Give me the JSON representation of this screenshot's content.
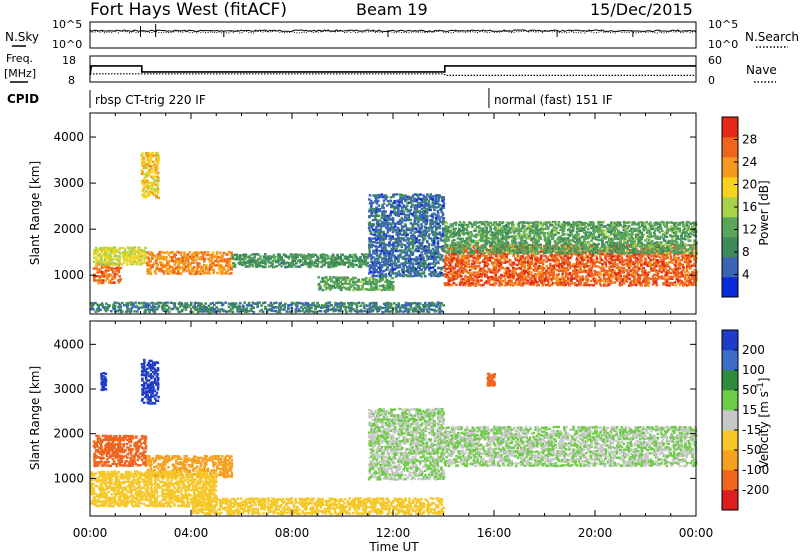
{
  "header": {
    "station": "Fort Hays West (fitACF)",
    "beam": "Beam 19",
    "date": "15/Dec/2015"
  },
  "strip_labels": {
    "nsky": "N.Sky",
    "nsearch": "N.Search",
    "freq_line1": "Freq.",
    "freq_line2": "[MHz]",
    "nave": "Nave",
    "cpid": "CPID"
  },
  "noise_axis": {
    "left_top": "10^5",
    "left_bottom": "10^0",
    "right_top": "10^5",
    "right_bottom": "10^0"
  },
  "freq_axis": {
    "left_top": "18",
    "left_bottom": "8",
    "right_top": "60",
    "right_bottom": "0"
  },
  "cpid_segments": [
    {
      "label": "rbsp CT-trig 220 IF",
      "start_hour": 0,
      "end_hour": 15.8
    },
    {
      "label": "normal (fast) 151 IF",
      "start_hour": 15.8,
      "end_hour": 24
    }
  ],
  "colors": {
    "power": [
      "#0a2adc",
      "#3a64b4",
      "#3d8a5a",
      "#5aa55a",
      "#a8d24a",
      "#f5d21e",
      "#f59a1e",
      "#f0641e",
      "#e62814"
    ],
    "velocity": [
      "#1e3cc8",
      "#3c6ec8",
      "#2e8c3c",
      "#6ecc46",
      "#c8c8c8",
      "#f5c828",
      "#f5a01e",
      "#f0641e",
      "#dc1e1e"
    ],
    "ground_scatter": "#c0c0c0"
  },
  "chart_data": [
    {
      "type": "line",
      "title": "N.Sky / N.Search",
      "x_range_hours": [
        0,
        24
      ],
      "y_scale": "log",
      "y_range": [
        "10^0",
        "10^5"
      ],
      "series": [
        {
          "name": "N.Sky",
          "x": [
            0,
            2,
            4,
            6,
            8,
            10,
            12,
            14,
            16,
            18,
            20,
            22,
            24
          ],
          "y": [
            3000,
            3200,
            2800,
            3000,
            2900,
            3100,
            3000,
            2900,
            3000,
            3100,
            2900,
            3000,
            3200
          ]
        },
        {
          "name": "N.Search",
          "x": [
            0,
            4,
            8,
            12,
            16,
            20,
            24
          ],
          "y": [
            1500,
            1400,
            1500,
            1600,
            1500,
            1500,
            1400
          ]
        }
      ]
    },
    {
      "type": "line",
      "title": "Freq. / Nave",
      "x_range_hours": [
        0,
        24
      ],
      "ylim_left": [
        8,
        18
      ],
      "ylim_right": [
        0,
        60
      ],
      "series": [
        {
          "name": "Freq. [MHz]",
          "x": [
            0,
            0.05,
            2.05,
            2.05,
            14.05,
            14.05,
            24
          ],
          "y": [
            10.5,
            14.3,
            14.3,
            11.8,
            11.8,
            14.3,
            14.3
          ]
        },
        {
          "name": "Nave",
          "x": [
            0,
            14,
            14.1,
            24
          ],
          "y": [
            18,
            18,
            14,
            14
          ]
        }
      ]
    },
    {
      "type": "heatmap",
      "title": "Power",
      "xlabel": "",
      "ylabel": "Slant Range [km]",
      "colorbar_label": "Power [dB]",
      "x_range_hours": [
        0,
        24
      ],
      "ylim": [
        180,
        4500
      ],
      "yticks": [
        1000,
        2000,
        3000,
        4000
      ],
      "colorbar_ticks": [
        4,
        8,
        12,
        16,
        20,
        24,
        28
      ],
      "colorbar_range": [
        0,
        32
      ],
      "features": [
        {
          "t0": 0.1,
          "t1": 1.2,
          "r0": 850,
          "r1": 1300,
          "value": 26
        },
        {
          "t0": 0.1,
          "t1": 2.2,
          "r0": 1250,
          "r1": 1650,
          "value": 18
        },
        {
          "t0": 2.2,
          "t1": 5.6,
          "r0": 1050,
          "r1": 1550,
          "value": 24
        },
        {
          "t0": 2.0,
          "t1": 2.7,
          "r0": 2700,
          "r1": 3700,
          "value": 20
        },
        {
          "t0": 5.6,
          "t1": 11.0,
          "r0": 1200,
          "r1": 1500,
          "value": 10
        },
        {
          "t0": 9.0,
          "t1": 12.0,
          "r0": 700,
          "r1": 1000,
          "value": 12
        },
        {
          "t0": 11.0,
          "t1": 14.0,
          "r0": 1000,
          "r1": 2800,
          "value": 6
        },
        {
          "t0": 14.0,
          "t1": 24.0,
          "r0": 800,
          "r1": 1700,
          "value": 27
        },
        {
          "t0": 14.0,
          "t1": 24.0,
          "r0": 1500,
          "r1": 2200,
          "value": 12
        },
        {
          "t0": 0.0,
          "t1": 14.0,
          "r0": 180,
          "r1": 450,
          "value": 8
        }
      ]
    },
    {
      "type": "heatmap",
      "title": "Velocity",
      "xlabel": "Time UT",
      "ylabel": "Slant Range [km]",
      "colorbar_label": "Velocity [m s^-1]",
      "x_range_hours": [
        0,
        24
      ],
      "xticks": [
        "00:00",
        "04:00",
        "08:00",
        "12:00",
        "16:00",
        "20:00",
        "00:00"
      ],
      "ylim": [
        180,
        4500
      ],
      "yticks": [
        1000,
        2000,
        3000,
        4000
      ],
      "colorbar_ticks": [
        200,
        100,
        50,
        15,
        -15,
        -50,
        -100,
        -200
      ],
      "colorbar_range": [
        -250,
        250
      ],
      "features": [
        {
          "t0": 0.1,
          "t1": 2.2,
          "r0": 1300,
          "r1": 2000,
          "value": -220
        },
        {
          "t0": 2.2,
          "t1": 5.6,
          "r0": 1050,
          "r1": 1550,
          "value": -80
        },
        {
          "t0": 2.0,
          "t1": 2.7,
          "r0": 2700,
          "r1": 3700,
          "value": 220
        },
        {
          "t0": 0.4,
          "t1": 0.6,
          "r0": 3000,
          "r1": 3400,
          "value": 180
        },
        {
          "t0": 0.0,
          "t1": 5.0,
          "r0": 400,
          "r1": 1200,
          "value": -40
        },
        {
          "t0": 4.0,
          "t1": 14.0,
          "r0": 180,
          "r1": 600,
          "value": -40
        },
        {
          "t0": 11.0,
          "t1": 14.0,
          "r0": 1000,
          "r1": 2600,
          "value": 0
        },
        {
          "t0": 14.0,
          "t1": 24.0,
          "r0": 1300,
          "r1": 2200,
          "value": 0
        },
        {
          "t0": 15.7,
          "t1": 16.0,
          "r0": 3100,
          "r1": 3400,
          "value": -220
        }
      ]
    }
  ]
}
